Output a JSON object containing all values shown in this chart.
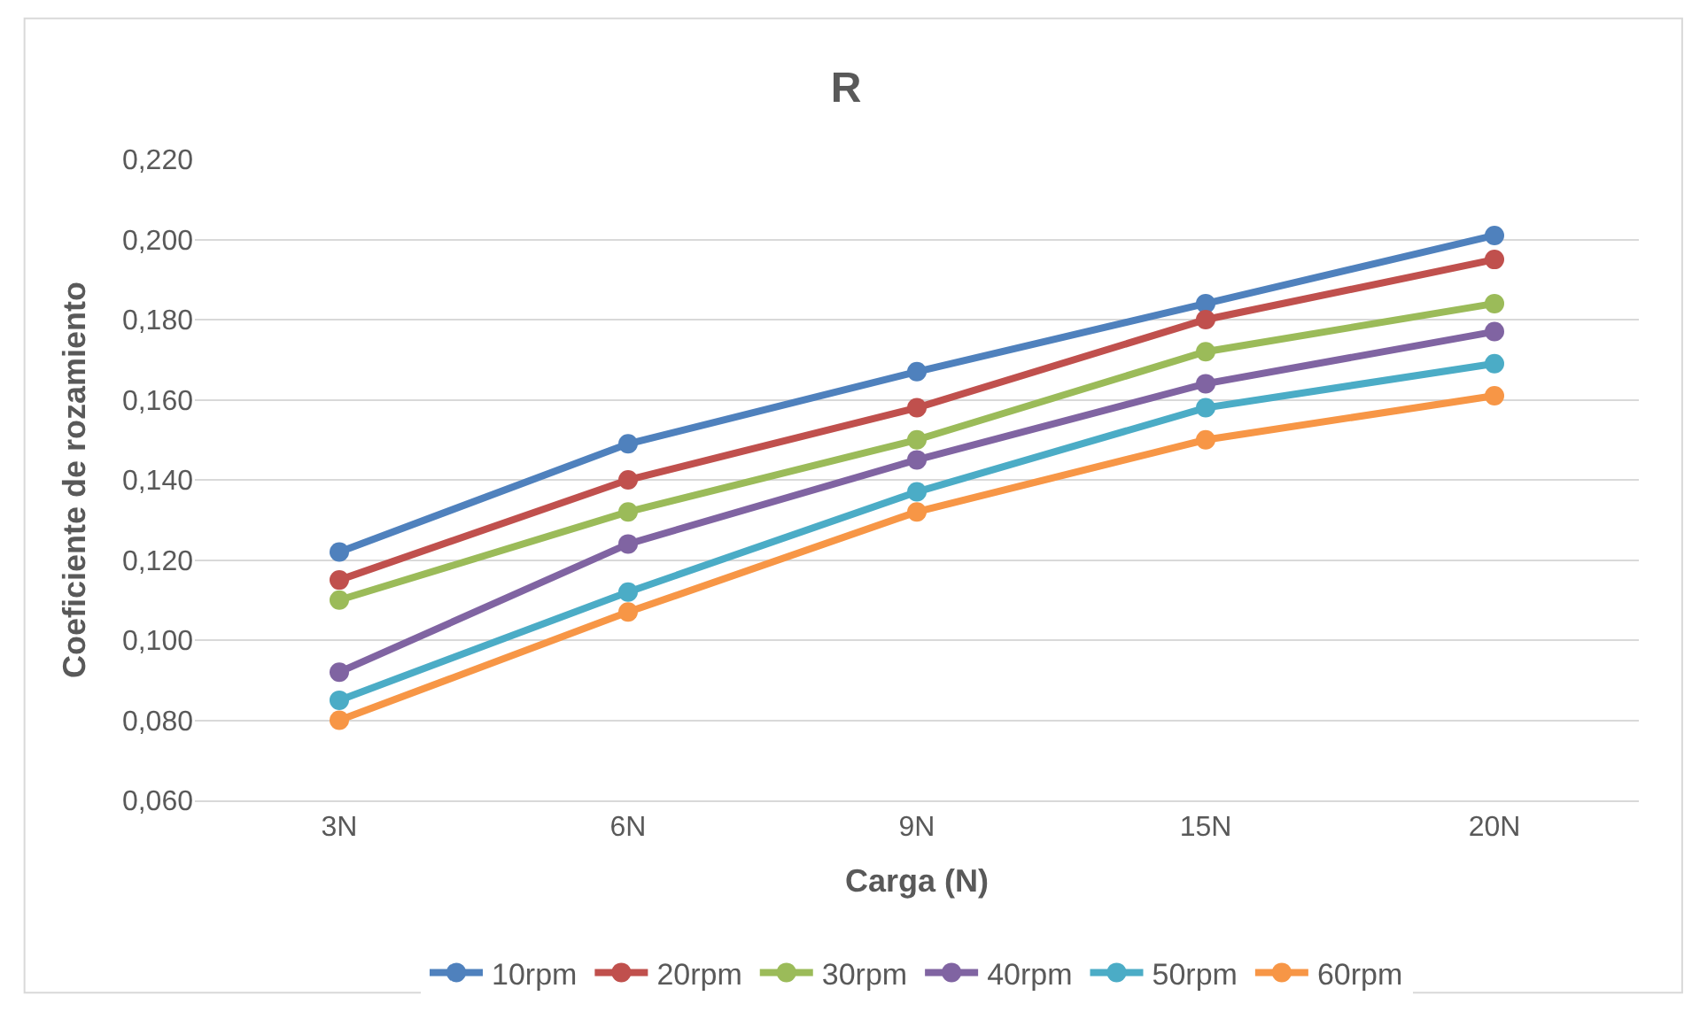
{
  "chart_data": {
    "type": "line",
    "title": "R",
    "xlabel": "Carga (N)",
    "ylabel": "Coeficiente de rozamiento",
    "categories": [
      "3N",
      "6N",
      "9N",
      "15N",
      "20N"
    ],
    "ylim": [
      0.06,
      0.22
    ],
    "yticks": [
      {
        "value": 0.06,
        "label": "0,060"
      },
      {
        "value": 0.08,
        "label": "0,080"
      },
      {
        "value": 0.1,
        "label": "0,100"
      },
      {
        "value": 0.12,
        "label": "0,120"
      },
      {
        "value": 0.14,
        "label": "0,140"
      },
      {
        "value": 0.16,
        "label": "0,160"
      },
      {
        "value": 0.18,
        "label": "0,180"
      },
      {
        "value": 0.2,
        "label": "0,200"
      },
      {
        "value": 0.22,
        "label": "0,220"
      }
    ],
    "grid": "y",
    "legend": "bottom",
    "marker": "circle",
    "line_style": "solid",
    "series": [
      {
        "name": "10rpm",
        "color": "#4f81bd",
        "values": [
          0.122,
          0.149,
          0.167,
          0.184,
          0.201
        ]
      },
      {
        "name": "20rpm",
        "color": "#c0504d",
        "values": [
          0.115,
          0.14,
          0.158,
          0.18,
          0.195
        ]
      },
      {
        "name": "30rpm",
        "color": "#9bbb59",
        "values": [
          0.11,
          0.132,
          0.15,
          0.172,
          0.184
        ]
      },
      {
        "name": "40rpm",
        "color": "#8064a2",
        "values": [
          0.092,
          0.124,
          0.145,
          0.164,
          0.177
        ]
      },
      {
        "name": "50rpm",
        "color": "#4bacc6",
        "values": [
          0.085,
          0.112,
          0.137,
          0.158,
          0.169
        ]
      },
      {
        "name": "60rpm",
        "color": "#f79646",
        "values": [
          0.08,
          0.107,
          0.132,
          0.15,
          0.161
        ]
      }
    ]
  }
}
